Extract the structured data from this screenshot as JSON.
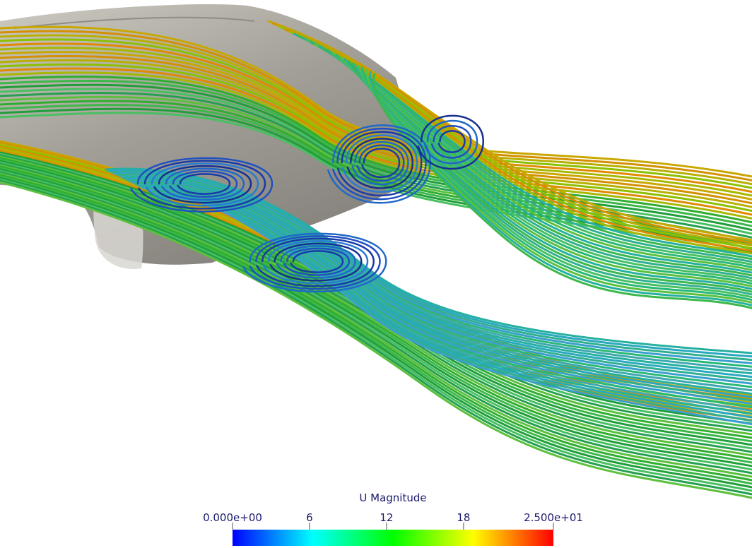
{
  "colorbar": {
    "title": "U Magnitude",
    "range": [
      {
        "value": 0,
        "label": "0.000e+00"
      },
      {
        "value": 25,
        "label": "2.500e+01"
      }
    ],
    "ticks": [
      6,
      12,
      18
    ],
    "colormap": [
      "#0000ff",
      "#00ffff",
      "#00ff00",
      "#ffff00",
      "#ff0000"
    ]
  }
}
